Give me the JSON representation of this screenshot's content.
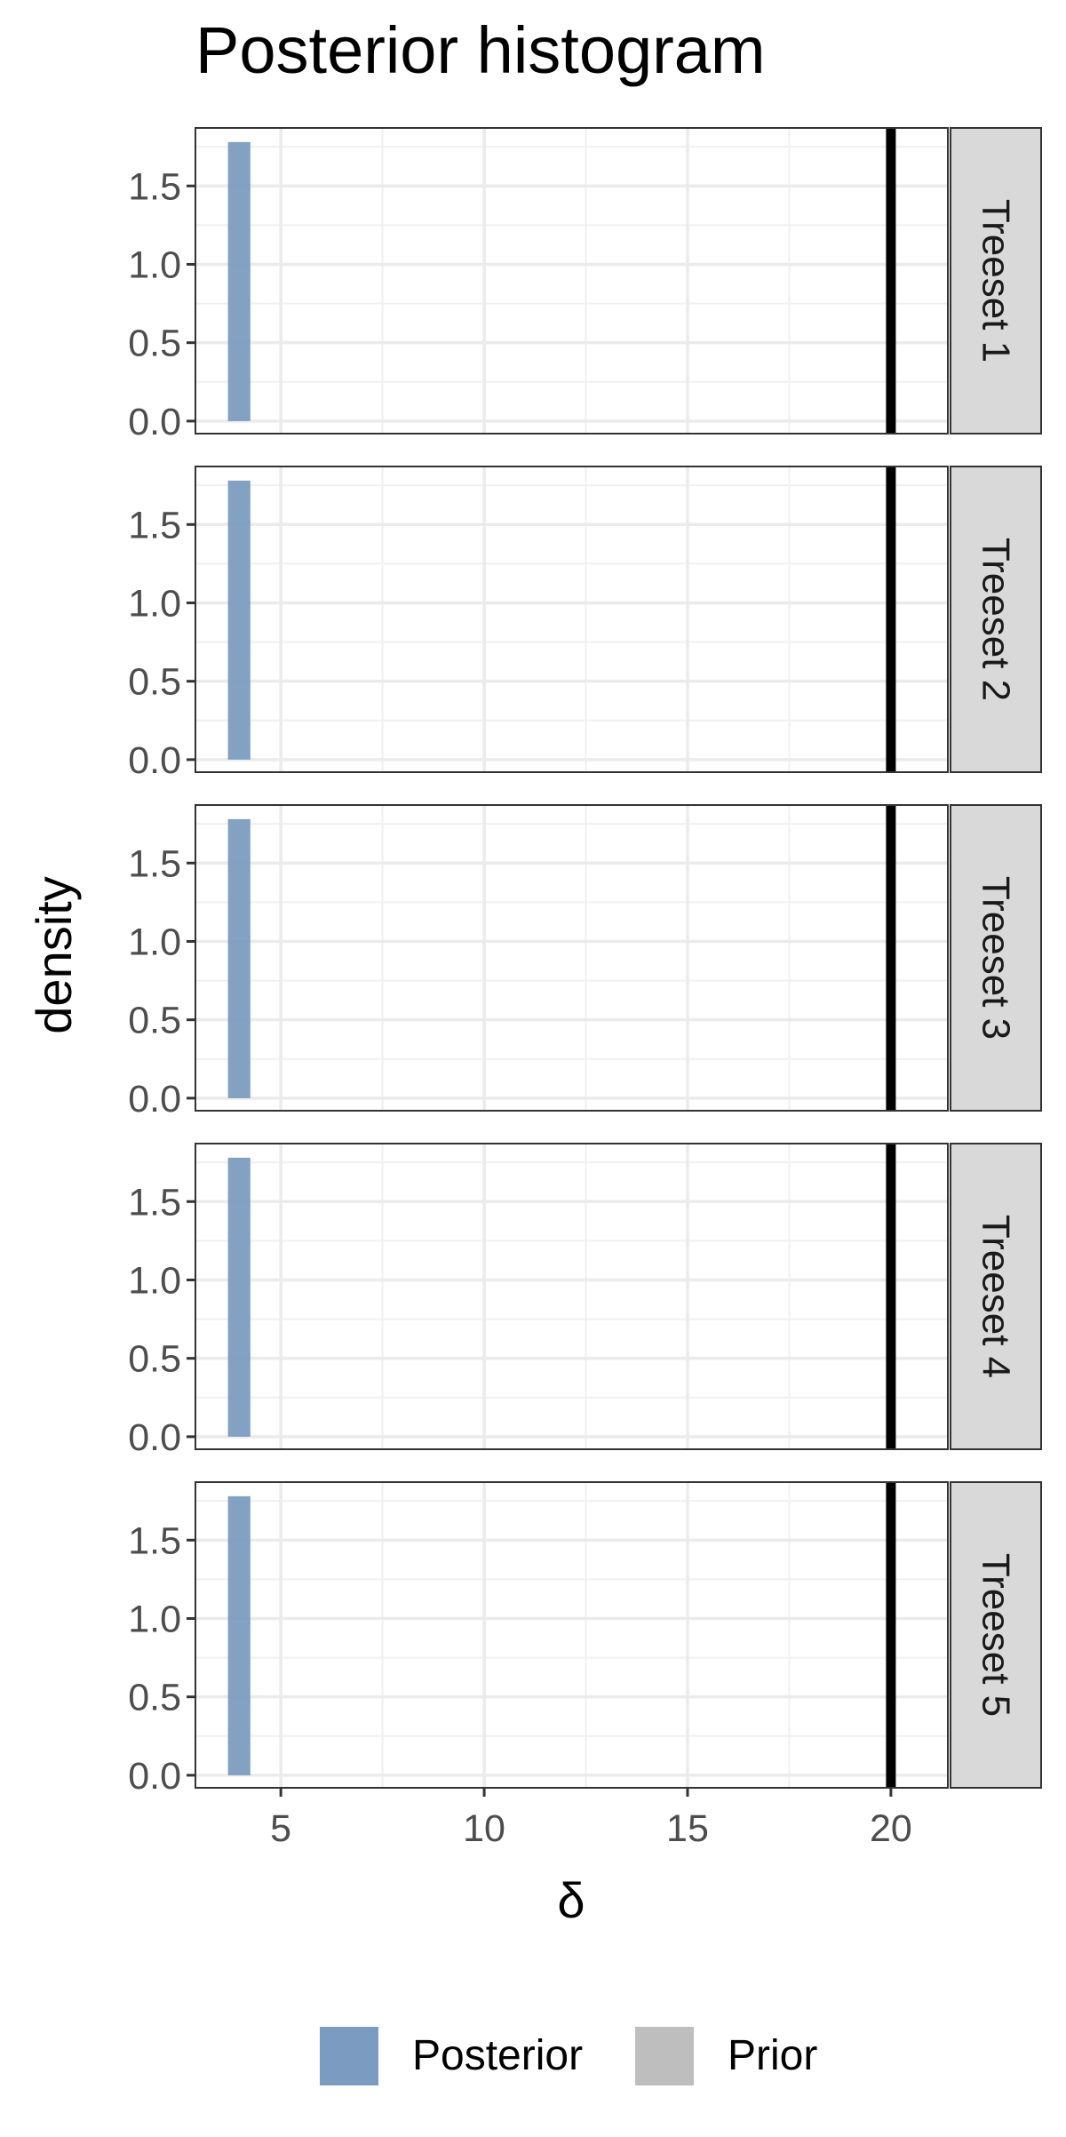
{
  "chart_data": {
    "type": "bar",
    "title": "Posterior histogram",
    "xlabel": "δ",
    "ylabel": "density",
    "xlim": [
      2.9,
      21.4
    ],
    "ylim": [
      -0.08,
      1.87
    ],
    "xticks": [
      5,
      10,
      15,
      20
    ],
    "xtick_labels": [
      "5",
      "10",
      "15",
      "20"
    ],
    "yticks": [
      0,
      0.5,
      1.0,
      1.5
    ],
    "ytick_labels": [
      "0.0",
      "0.5",
      "1.0",
      "1.5"
    ],
    "grid": true,
    "vline": 20,
    "legend": {
      "position": "bottom",
      "entries": [
        {
          "label": "Posterior",
          "color": "#7b9cc0"
        },
        {
          "label": "Prior",
          "color": "#bebebe"
        }
      ]
    },
    "panels": [
      {
        "strip": "Treeset 1",
        "bars": [
          {
            "x0": 3.7,
            "x1": 4.25,
            "density": 1.78,
            "series": "Posterior"
          }
        ]
      },
      {
        "strip": "Treeset 2",
        "bars": [
          {
            "x0": 3.7,
            "x1": 4.25,
            "density": 1.78,
            "series": "Posterior"
          }
        ]
      },
      {
        "strip": "Treeset 3",
        "bars": [
          {
            "x0": 3.7,
            "x1": 4.25,
            "density": 1.78,
            "series": "Posterior"
          }
        ]
      },
      {
        "strip": "Treeset 4",
        "bars": [
          {
            "x0": 3.7,
            "x1": 4.25,
            "density": 1.78,
            "series": "Posterior"
          }
        ]
      },
      {
        "strip": "Treeset 5",
        "bars": [
          {
            "x0": 3.7,
            "x1": 4.25,
            "density": 1.78,
            "series": "Posterior"
          }
        ]
      }
    ]
  }
}
